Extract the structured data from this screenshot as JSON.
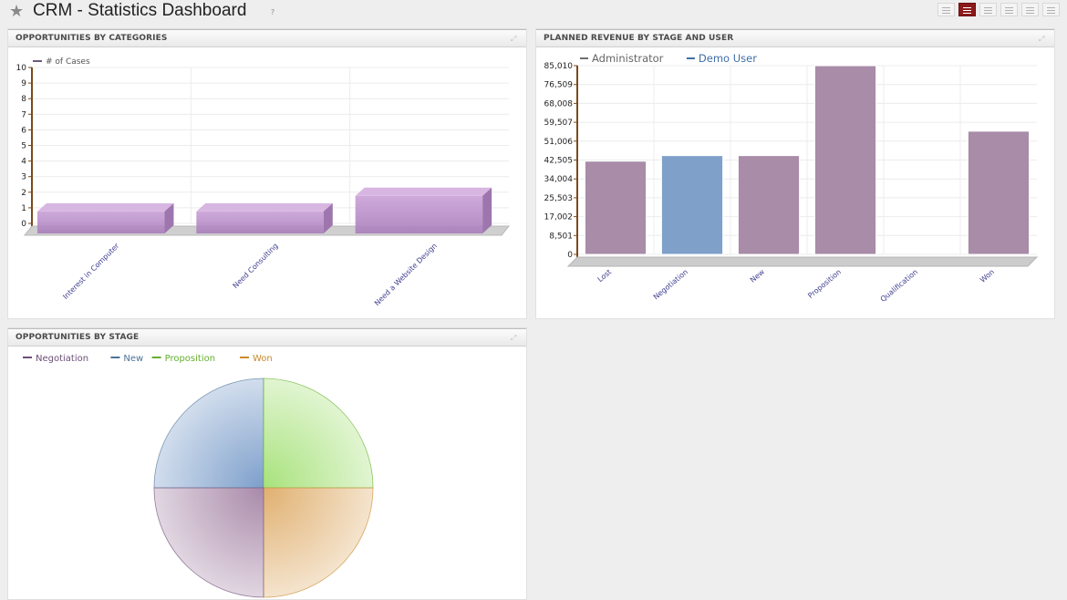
{
  "page": {
    "title": "CRM - Statistics Dashboard",
    "help_mark": "?",
    "favorite_icon": "star-icon",
    "views": [
      {
        "name": "list-view-icon",
        "active": false
      },
      {
        "name": "dashboard-view-icon",
        "active": true
      },
      {
        "name": "graph-view-icon",
        "active": false
      },
      {
        "name": "form-view-icon",
        "active": false
      },
      {
        "name": "gantt-view-icon",
        "active": false
      },
      {
        "name": "grid-view-icon",
        "active": false
      }
    ]
  },
  "panels": {
    "categories": {
      "title": "OPPORTUNITIES BY CATEGORIES"
    },
    "revenue": {
      "title": "PLANNED REVENUE BY STAGE AND USER"
    },
    "stage": {
      "title": "OPPORTUNITIES BY STAGE"
    }
  },
  "chart_data": [
    {
      "id": "categories",
      "type": "bar",
      "title": "OPPORTUNITIES BY CATEGORIES",
      "categories": [
        "Interest in Computer",
        "Need Consulting",
        "Need a Website Design"
      ],
      "series": [
        {
          "name": "# of Cases",
          "values": [
            1,
            1,
            2
          ],
          "color": "#b98cc9"
        }
      ],
      "ylim": [
        0,
        10
      ],
      "yticks": [
        "0",
        "1",
        "2",
        "3",
        "4",
        "5",
        "6",
        "7",
        "8",
        "9",
        "10"
      ],
      "grid": true,
      "legend": "top-left"
    },
    {
      "id": "revenue",
      "type": "bar",
      "title": "PLANNED REVENUE BY STAGE AND USER",
      "categories": [
        "Lost",
        "Negotiation",
        "New",
        "Proposition",
        "Qualification",
        "Won"
      ],
      "series": [
        {
          "name": "Administrator",
          "color": "#a88ca8"
        },
        {
          "name": "Demo User",
          "color": "#7ea0c9"
        }
      ],
      "bars": [
        {
          "category": "Lost",
          "series": "Administrator",
          "value": 42000
        },
        {
          "category": "Negotiation",
          "series": "Demo User",
          "value": 44500
        },
        {
          "category": "New",
          "series": "Administrator",
          "value": 44500
        },
        {
          "category": "Proposition",
          "series": "Administrator",
          "value": 85010
        },
        {
          "category": "Qualification",
          "series": "Administrator",
          "value": 0
        },
        {
          "category": "Won",
          "series": "Administrator",
          "value": 55500
        }
      ],
      "ylim": [
        0,
        85010
      ],
      "yticks": [
        "0",
        "8,501",
        "17,002",
        "25,503",
        "34,004",
        "42,505",
        "51,006",
        "59,507",
        "68,008",
        "76,509",
        "85,010"
      ],
      "grid": true,
      "legend": "top-left"
    },
    {
      "id": "stage",
      "type": "pie",
      "title": "OPPORTUNITIES BY STAGE",
      "series": [
        {
          "name": "Negotiation",
          "value": 1,
          "color": "#a98aa9",
          "text_color": "#6d4f77"
        },
        {
          "name": "New",
          "value": 1,
          "color": "#7d9fcb",
          "text_color": "#4f7299"
        },
        {
          "name": "Proposition",
          "value": 1,
          "color": "#a8e27c",
          "text_color": "#64b02d"
        },
        {
          "name": "Won",
          "value": 1,
          "color": "#e0b070",
          "text_color": "#c98a2b"
        }
      ],
      "legend": "top-left"
    }
  ]
}
